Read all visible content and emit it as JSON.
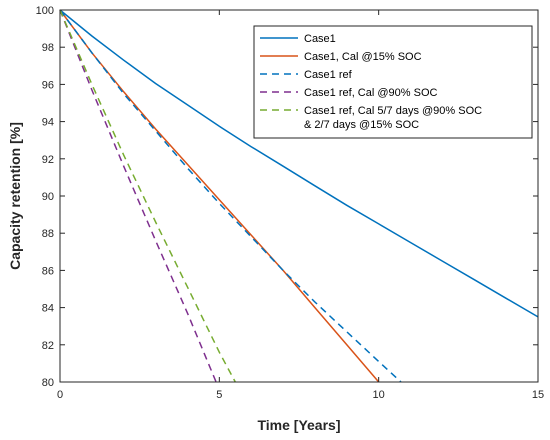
{
  "chart_data": {
    "type": "line",
    "xlabel": "Time [Years]",
    "ylabel": "Capacity retention [%]",
    "xlim": [
      0,
      15
    ],
    "ylim": [
      80,
      100
    ],
    "xticks": [
      0,
      5,
      10,
      15
    ],
    "yticks": [
      80,
      82,
      84,
      86,
      88,
      90,
      92,
      94,
      96,
      98,
      100
    ],
    "grid": false,
    "legend_position": "top-right",
    "series": [
      {
        "name": "Case1",
        "color": "#0072BD",
        "style": "solid",
        "x": [
          0,
          1,
          2,
          3,
          4,
          5,
          6,
          7,
          8,
          9,
          10,
          11,
          12,
          13,
          14,
          15
        ],
        "y": [
          100,
          98.6,
          97.3,
          96.05,
          94.9,
          93.75,
          92.65,
          91.6,
          90.55,
          89.5,
          88.5,
          87.5,
          86.5,
          85.5,
          84.5,
          83.5
        ]
      },
      {
        "name": "Case1, Cal @15% SOC",
        "color": "#D95319",
        "style": "solid",
        "x": [
          0,
          1,
          2,
          3,
          4,
          5,
          6,
          7,
          8,
          9,
          10
        ],
        "y": [
          100,
          97.7,
          95.6,
          93.6,
          91.7,
          89.8,
          87.9,
          86.0,
          84.0,
          82.0,
          80.0
        ]
      },
      {
        "name": "Case1 ref",
        "color": "#0072BD",
        "style": "dashed",
        "x": [
          0,
          1,
          2,
          3,
          4,
          5,
          6,
          7,
          8,
          9,
          10,
          10.7
        ],
        "y": [
          100,
          97.7,
          95.5,
          93.5,
          91.5,
          89.6,
          87.8,
          86.0,
          84.3,
          82.7,
          81.1,
          80.0
        ]
      },
      {
        "name": "Case1 ref, Cal @90% SOC",
        "color": "#7E2F8E",
        "style": "dashed",
        "x": [
          0,
          1,
          2,
          3,
          4,
          4.9
        ],
        "y": [
          100,
          95.7,
          91.6,
          87.6,
          83.7,
          80.0
        ]
      },
      {
        "name": "Case1 ref, Cal 5/7 days @90% SOC & 2/7 days @15% SOC",
        "label_lines": [
          "Case1 ref, Cal 5/7 days @90% SOC",
          "& 2/7 days @15% SOC"
        ],
        "color": "#77AC30",
        "style": "dashed",
        "x": [
          0,
          1,
          2,
          3,
          4,
          5,
          5.5
        ],
        "y": [
          100,
          96.0,
          92.2,
          88.6,
          85.1,
          81.6,
          80.0
        ]
      }
    ]
  }
}
